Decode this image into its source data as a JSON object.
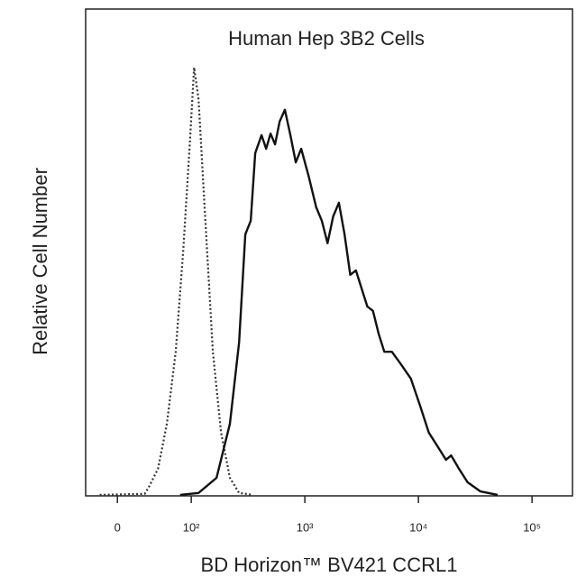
{
  "chart_data": {
    "type": "line",
    "title": "Human Hep 3B2 Cells",
    "x_label": "BD Horizon™ BV421  CCRL1",
    "y_label": "Relative Cell Number",
    "xscale": "biexponential",
    "xlim": [
      -43,
      227000
    ],
    "ylim": [
      0,
      100
    ],
    "xticks": [
      0,
      {
        "value": 100,
        "label": "10²"
      },
      {
        "value": 1000,
        "label": "10³"
      },
      {
        "value": 10000,
        "label": "10⁴"
      },
      {
        "value": 100000,
        "label": "10⁵"
      }
    ],
    "series": [
      {
        "style": "dotted",
        "color": "#333333",
        "x": [
          -24,
          37,
          43,
          55,
          67,
          79,
          89,
          98,
          106,
          116,
          134,
          155,
          183,
          219,
          264,
          347
        ],
        "values": [
          0.2,
          0.4,
          1.9,
          5.6,
          14.8,
          29.6,
          50.0,
          72.2,
          88.0,
          81.5,
          55.6,
          29.6,
          13.0,
          3.7,
          0.6,
          0.2
        ]
      },
      {
        "style": "solid",
        "color": "#111111",
        "x": [
          85,
          116,
          167,
          219,
          264,
          299,
          334,
          366,
          416,
          456,
          499,
          547,
          600,
          668,
          746,
          833,
          929,
          1080,
          1259,
          1413,
          1585,
          1778,
          1995,
          2239,
          2512,
          2818,
          3162,
          3548,
          3981,
          4467,
          5012,
          5843,
          7079,
          8577,
          10350,
          12330,
          14690,
          17470,
          19410,
          22700,
          27040,
          35110,
          49770
        ],
        "values": [
          0.2,
          0.6,
          3.7,
          14.8,
          31.5,
          53.7,
          56.5,
          70.4,
          74.1,
          71.3,
          74.4,
          72.2,
          76.9,
          79.3,
          74.1,
          68.5,
          71.3,
          65.7,
          59.3,
          56.5,
          51.9,
          57.4,
          60.2,
          53.7,
          45.4,
          46.3,
          42.6,
          38.9,
          38.0,
          33.3,
          29.6,
          29.6,
          26.9,
          24.1,
          18.5,
          13.0,
          10.2,
          7.4,
          8.3,
          5.6,
          2.8,
          0.9,
          0.2
        ]
      }
    ]
  }
}
